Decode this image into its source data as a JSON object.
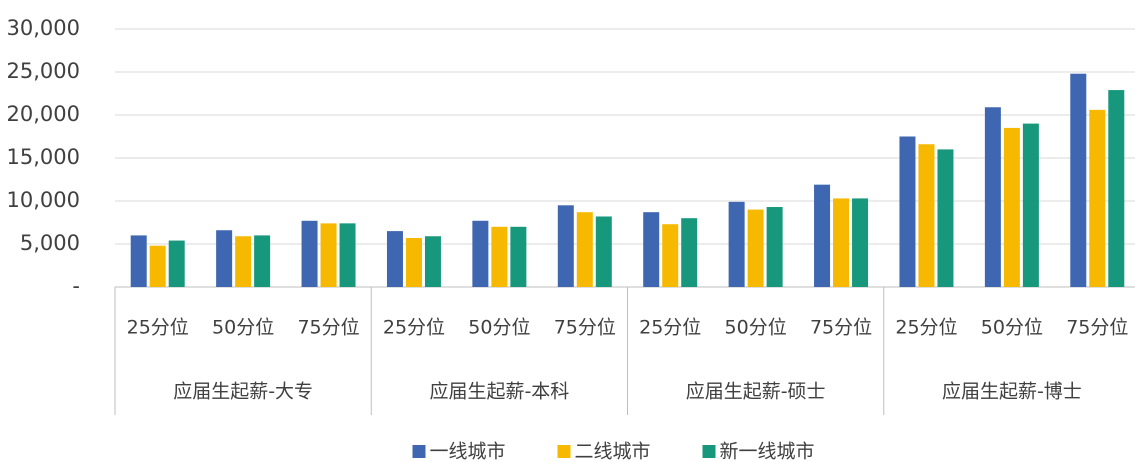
{
  "chart_data": {
    "type": "bar",
    "groups": [
      {
        "name": "应届生起薪-大专",
        "categories": [
          "25分位",
          "50分位",
          "75分位"
        ]
      },
      {
        "name": "应届生起薪-本科",
        "categories": [
          "25分位",
          "50分位",
          "75分位"
        ]
      },
      {
        "name": "应届生起薪-硕士",
        "categories": [
          "25分位",
          "50分位",
          "75分位"
        ]
      },
      {
        "name": "应届生起薪-博士",
        "categories": [
          "25分位",
          "50分位",
          "75分位"
        ]
      }
    ],
    "series": [
      {
        "name": "一线城市",
        "color": "#3f67b1",
        "values": [
          6000,
          6600,
          7700,
          6500,
          7700,
          9500,
          8700,
          9900,
          11900,
          17500,
          20900,
          24800
        ]
      },
      {
        "name": "二线城市",
        "color": "#f7b900",
        "values": [
          4800,
          5900,
          7400,
          5700,
          7000,
          8700,
          7300,
          9000,
          10300,
          16600,
          18500,
          20600
        ]
      },
      {
        "name": "新一线城市",
        "color": "#17987c",
        "values": [
          5400,
          6000,
          7400,
          5900,
          7000,
          8200,
          8000,
          9300,
          10300,
          16000,
          19000,
          22900
        ]
      }
    ],
    "ylim": [
      0,
      30000
    ],
    "yticks": [
      {
        "value": 0,
        "label": "-"
      },
      {
        "value": 5000,
        "label": "5,000"
      },
      {
        "value": 10000,
        "label": "10,000"
      },
      {
        "value": 15000,
        "label": "15,000"
      },
      {
        "value": 20000,
        "label": "20,000"
      },
      {
        "value": 25000,
        "label": "25,000"
      },
      {
        "value": 30000,
        "label": "30,000"
      }
    ],
    "grid": true,
    "legend": "bottom"
  }
}
